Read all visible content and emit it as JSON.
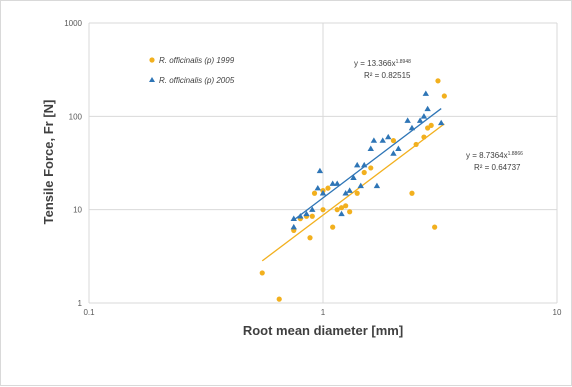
{
  "chart_data": {
    "type": "scatter",
    "title": "",
    "xlabel": "Root mean diameter [mm]",
    "ylabel": "Tensile Force, Fr [N]",
    "x_scale": "log",
    "y_scale": "log",
    "xlim": [
      0.1,
      10
    ],
    "ylim": [
      1,
      1000
    ],
    "x_ticks": [
      "0.1",
      "1",
      "10"
    ],
    "y_ticks": [
      "1",
      "10",
      "100",
      "1000"
    ],
    "grid": "major",
    "legend_position": "top-left",
    "series": [
      {
        "name": "R. officinalis (p) 1999",
        "marker": "circle",
        "color": "#f2b01e",
        "points": [
          [
            0.55,
            2.1
          ],
          [
            0.65,
            1.1
          ],
          [
            0.75,
            6
          ],
          [
            0.8,
            8
          ],
          [
            0.85,
            8.5
          ],
          [
            0.88,
            5
          ],
          [
            0.9,
            8.5
          ],
          [
            0.92,
            15
          ],
          [
            1.0,
            10
          ],
          [
            1.0,
            16
          ],
          [
            1.05,
            17
          ],
          [
            1.1,
            6.5
          ],
          [
            1.15,
            10
          ],
          [
            1.2,
            10.5
          ],
          [
            1.25,
            11
          ],
          [
            1.3,
            9.5
          ],
          [
            1.4,
            15
          ],
          [
            1.5,
            25
          ],
          [
            1.6,
            28
          ],
          [
            2.0,
            55
          ],
          [
            2.4,
            15
          ],
          [
            2.5,
            50
          ],
          [
            2.7,
            60
          ],
          [
            2.8,
            75
          ],
          [
            2.9,
            80
          ],
          [
            3.0,
            6.5
          ],
          [
            3.1,
            240
          ],
          [
            3.3,
            165
          ]
        ],
        "trendline": {
          "equation": "y = 8.7364x",
          "exponent": "1.8866",
          "r2": "R² = 0.64737",
          "coef": 8.7364,
          "power": 1.8866,
          "x_range": [
            0.55,
            3.3
          ]
        }
      },
      {
        "name": "R. officinalis (p) 2005",
        "marker": "triangle",
        "color": "#2e75b6",
        "points": [
          [
            0.75,
            8
          ],
          [
            0.75,
            6.5
          ],
          [
            0.8,
            8.5
          ],
          [
            0.85,
            9
          ],
          [
            0.9,
            10
          ],
          [
            0.95,
            17
          ],
          [
            0.97,
            26
          ],
          [
            1.0,
            15
          ],
          [
            1.1,
            19
          ],
          [
            1.15,
            19
          ],
          [
            1.2,
            9
          ],
          [
            1.25,
            15
          ],
          [
            1.3,
            16
          ],
          [
            1.35,
            22
          ],
          [
            1.4,
            30
          ],
          [
            1.45,
            18
          ],
          [
            1.5,
            30
          ],
          [
            1.6,
            45
          ],
          [
            1.65,
            55
          ],
          [
            1.7,
            18
          ],
          [
            1.8,
            55
          ],
          [
            1.9,
            60
          ],
          [
            2.0,
            40
          ],
          [
            2.1,
            45
          ],
          [
            2.3,
            90
          ],
          [
            2.4,
            75
          ],
          [
            2.6,
            90
          ],
          [
            2.7,
            100
          ],
          [
            2.75,
            175
          ],
          [
            2.8,
            120
          ],
          [
            3.2,
            85
          ]
        ],
        "trendline": {
          "equation": "y = 13.366x",
          "exponent": "1.8948",
          "r2": "R² = 0.82515",
          "coef": 13.366,
          "power": 1.8948,
          "x_range": [
            0.75,
            3.2
          ]
        }
      }
    ]
  }
}
